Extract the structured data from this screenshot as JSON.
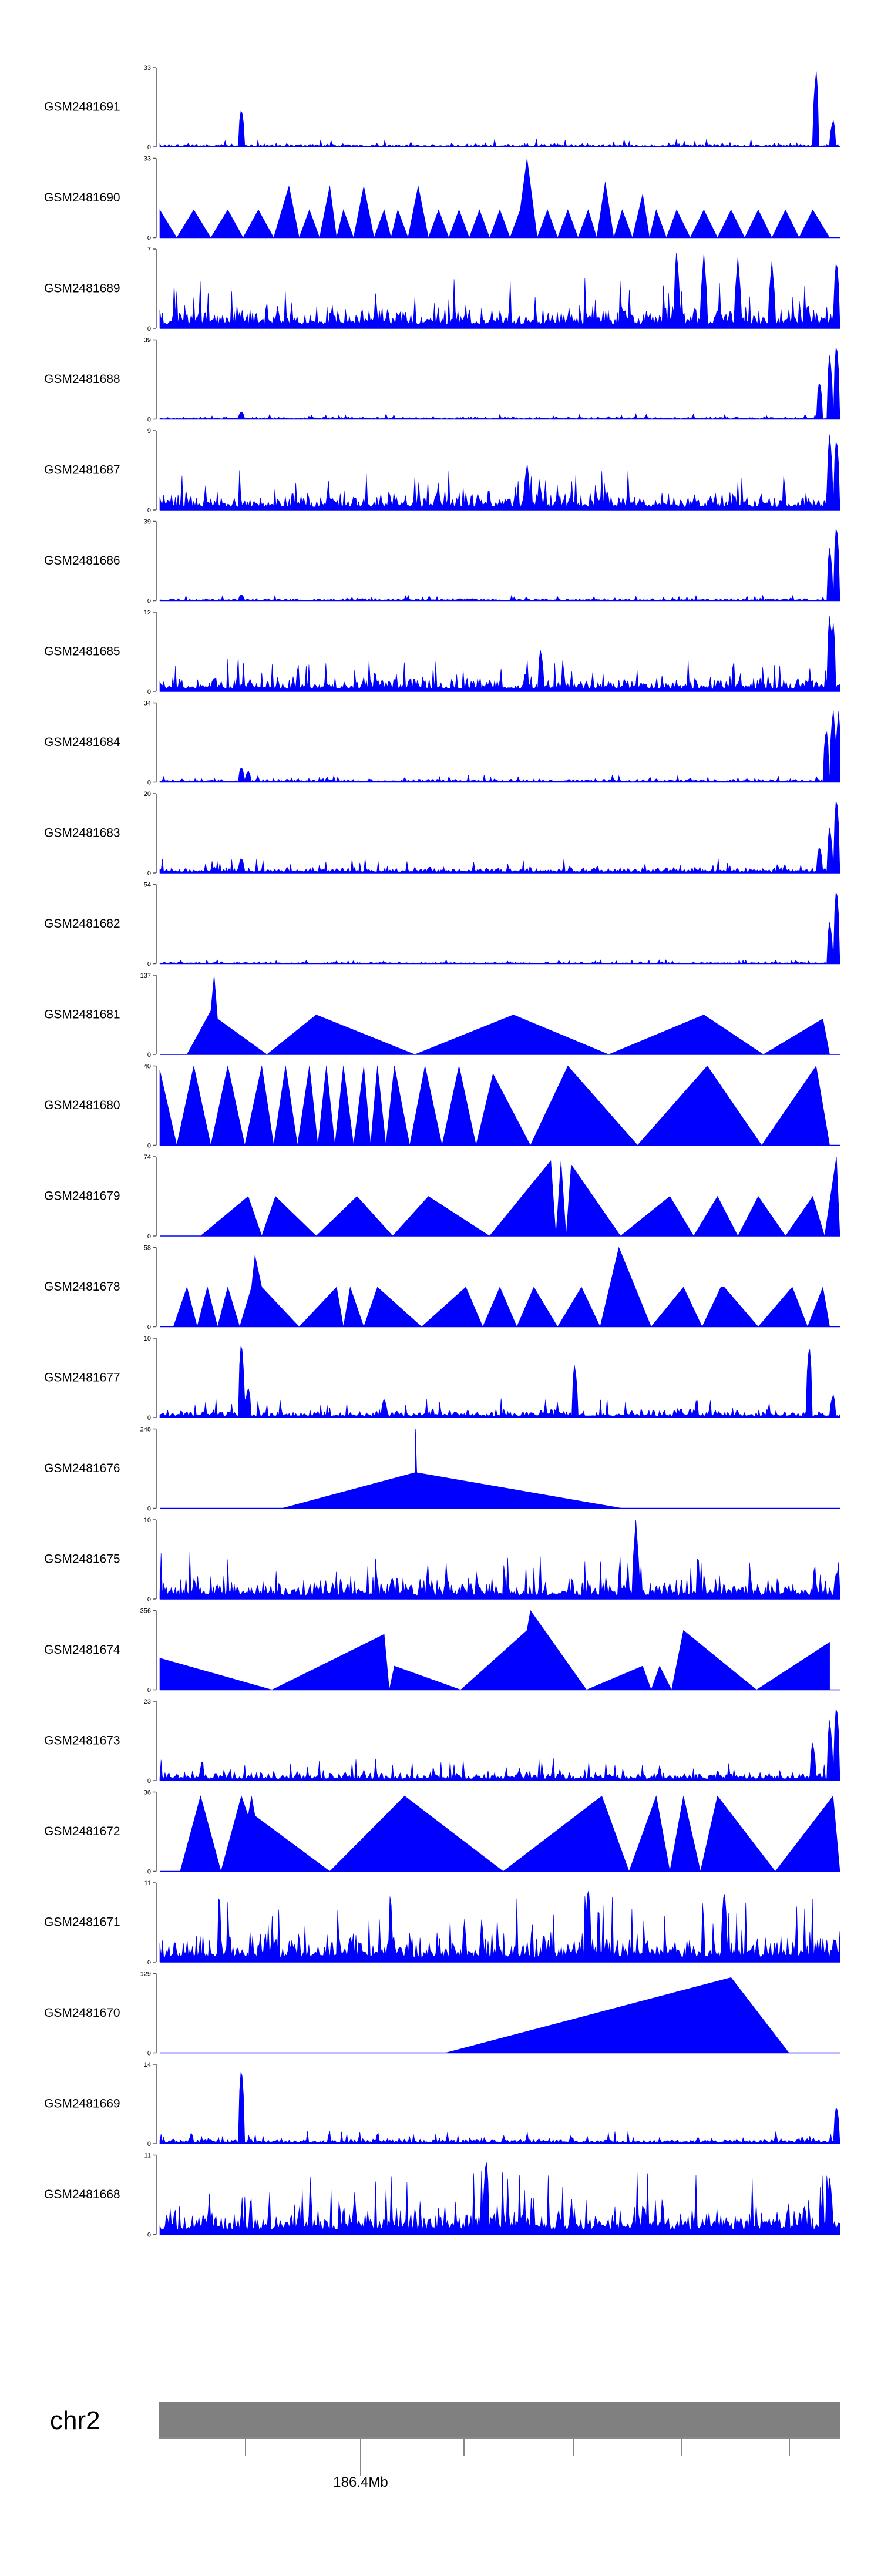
{
  "tracks": [
    {
      "name": "GSM2481691",
      "ymax": 33,
      "ymin": 0,
      "style": "noise",
      "seed": 11,
      "base": 0.05,
      "peaks": [
        [
          0.12,
          0.5
        ],
        [
          0.965,
          1.0
        ],
        [
          0.99,
          0.35
        ]
      ]
    },
    {
      "name": "GSM2481690",
      "ymax": 33,
      "ymin": 0,
      "style": "triangles",
      "seed": 12,
      "start": 0.0,
      "end": 0.985,
      "peaks": [
        [
          0.0,
          0.35
        ],
        [
          0.05,
          0.35
        ],
        [
          0.1,
          0.35
        ],
        [
          0.145,
          0.35
        ],
        [
          0.19,
          0.65
        ],
        [
          0.22,
          0.35
        ],
        [
          0.25,
          0.65
        ],
        [
          0.27,
          0.35
        ],
        [
          0.3,
          0.65
        ],
        [
          0.33,
          0.35
        ],
        [
          0.35,
          0.35
        ],
        [
          0.38,
          0.65
        ],
        [
          0.41,
          0.35
        ],
        [
          0.44,
          0.35
        ],
        [
          0.47,
          0.35
        ],
        [
          0.5,
          0.35
        ],
        [
          0.53,
          0.35
        ],
        [
          0.54,
          1.0
        ],
        [
          0.57,
          0.35
        ],
        [
          0.6,
          0.35
        ],
        [
          0.63,
          0.35
        ],
        [
          0.655,
          0.7
        ],
        [
          0.68,
          0.35
        ],
        [
          0.71,
          0.55
        ],
        [
          0.73,
          0.35
        ],
        [
          0.76,
          0.35
        ],
        [
          0.8,
          0.35
        ],
        [
          0.84,
          0.35
        ],
        [
          0.88,
          0.35
        ],
        [
          0.92,
          0.35
        ],
        [
          0.96,
          0.35
        ]
      ]
    },
    {
      "name": "GSM2481689",
      "ymax": 7,
      "ymin": 0,
      "style": "noise",
      "seed": 13,
      "base": 0.32,
      "peaks": [
        [
          0.76,
          1.0
        ],
        [
          0.8,
          0.95
        ],
        [
          0.85,
          0.9
        ],
        [
          0.9,
          0.85
        ],
        [
          0.995,
          0.9
        ]
      ]
    },
    {
      "name": "GSM2481688",
      "ymax": 39,
      "ymin": 0,
      "style": "noise",
      "seed": 14,
      "base": 0.035,
      "peaks": [
        [
          0.12,
          0.1
        ],
        [
          0.97,
          0.5
        ],
        [
          0.985,
          0.85
        ],
        [
          0.995,
          1.0
        ]
      ]
    },
    {
      "name": "GSM2481687",
      "ymax": 9,
      "ymin": 0,
      "style": "noise",
      "seed": 15,
      "base": 0.25,
      "peaks": [
        [
          0.54,
          0.6
        ],
        [
          0.985,
          1.0
        ],
        [
          0.995,
          0.95
        ]
      ]
    },
    {
      "name": "GSM2481686",
      "ymax": 39,
      "ymin": 0,
      "style": "noise",
      "seed": 16,
      "base": 0.035,
      "peaks": [
        [
          0.12,
          0.08
        ],
        [
          0.985,
          0.7
        ],
        [
          0.995,
          1.0
        ]
      ]
    },
    {
      "name": "GSM2481685",
      "ymax": 12,
      "ymin": 0,
      "style": "noise",
      "seed": 17,
      "base": 0.22,
      "peaks": [
        [
          0.56,
          0.55
        ],
        [
          0.985,
          1.0
        ],
        [
          0.99,
          0.9
        ]
      ]
    },
    {
      "name": "GSM2481684",
      "ymax": 34,
      "ymin": 0,
      "style": "noise",
      "seed": 18,
      "base": 0.05,
      "peaks": [
        [
          0.12,
          0.2
        ],
        [
          0.13,
          0.15
        ],
        [
          0.98,
          0.7
        ],
        [
          0.99,
          0.95
        ],
        [
          0.998,
          0.9
        ]
      ]
    },
    {
      "name": "GSM2481683",
      "ymax": 20,
      "ymin": 0,
      "style": "noise",
      "seed": 19,
      "base": 0.09,
      "peaks": [
        [
          0.12,
          0.2
        ],
        [
          0.97,
          0.35
        ],
        [
          0.985,
          0.6
        ],
        [
          0.995,
          1.0
        ]
      ]
    },
    {
      "name": "GSM2481682",
      "ymax": 54,
      "ymin": 0,
      "style": "noise",
      "seed": 20,
      "base": 0.025,
      "peaks": [
        [
          0.985,
          0.55
        ],
        [
          0.995,
          1.0
        ]
      ]
    },
    {
      "name": "GSM2481681",
      "ymax": 137,
      "ymin": 0,
      "style": "triangles",
      "seed": 21,
      "start": 0.04,
      "end": 0.985,
      "peaks": [
        [
          0.075,
          0.55
        ],
        [
          0.08,
          1.0
        ],
        [
          0.085,
          0.45
        ],
        [
          0.23,
          0.5
        ],
        [
          0.52,
          0.5
        ],
        [
          0.8,
          0.5
        ],
        [
          0.975,
          0.45
        ]
      ]
    },
    {
      "name": "GSM2481680",
      "ymax": 40,
      "ymin": 0,
      "style": "triangles",
      "seed": 22,
      "start": 0.0,
      "end": 0.985,
      "peaks": [
        [
          0.0,
          0.95
        ],
        [
          0.05,
          1.0
        ],
        [
          0.1,
          1.0
        ],
        [
          0.15,
          1.0
        ],
        [
          0.185,
          1.0
        ],
        [
          0.22,
          1.0
        ],
        [
          0.245,
          1.0
        ],
        [
          0.27,
          1.0
        ],
        [
          0.3,
          1.0
        ],
        [
          0.32,
          1.0
        ],
        [
          0.345,
          1.0
        ],
        [
          0.39,
          1.0
        ],
        [
          0.44,
          1.0
        ],
        [
          0.49,
          0.9
        ],
        [
          0.6,
          1.0
        ],
        [
          0.805,
          1.0
        ],
        [
          0.965,
          1.0
        ]
      ]
    },
    {
      "name": "GSM2481679",
      "ymax": 74,
      "ymin": 0,
      "style": "triangles",
      "seed": 23,
      "start": 0.06,
      "end": 1.0,
      "peaks": [
        [
          0.13,
          0.5
        ],
        [
          0.17,
          0.5
        ],
        [
          0.29,
          0.5
        ],
        [
          0.395,
          0.5
        ],
        [
          0.575,
          0.95
        ],
        [
          0.59,
          0.95
        ],
        [
          0.605,
          0.9
        ],
        [
          0.75,
          0.5
        ],
        [
          0.82,
          0.5
        ],
        [
          0.88,
          0.5
        ],
        [
          0.96,
          0.5
        ],
        [
          0.995,
          1.0
        ]
      ]
    },
    {
      "name": "GSM2481678",
      "ymax": 58,
      "ymin": 0,
      "style": "triangles",
      "seed": 24,
      "start": 0.02,
      "end": 0.985,
      "peaks": [
        [
          0.04,
          0.5
        ],
        [
          0.07,
          0.5
        ],
        [
          0.1,
          0.5
        ],
        [
          0.135,
          0.5
        ],
        [
          0.14,
          0.9
        ],
        [
          0.15,
          0.5
        ],
        [
          0.26,
          0.5
        ],
        [
          0.28,
          0.5
        ],
        [
          0.32,
          0.5
        ],
        [
          0.45,
          0.5
        ],
        [
          0.5,
          0.5
        ],
        [
          0.55,
          0.5
        ],
        [
          0.62,
          0.5
        ],
        [
          0.675,
          1.0
        ],
        [
          0.77,
          0.5
        ],
        [
          0.825,
          0.5
        ],
        [
          0.83,
          0.5
        ],
        [
          0.93,
          0.5
        ],
        [
          0.975,
          0.5
        ]
      ]
    },
    {
      "name": "GSM2481677",
      "ymax": 10,
      "ymin": 0,
      "style": "noise",
      "seed": 25,
      "base": 0.12,
      "peaks": [
        [
          0.12,
          1.0
        ],
        [
          0.13,
          0.4
        ],
        [
          0.33,
          0.25
        ],
        [
          0.61,
          0.7
        ],
        [
          0.955,
          0.95
        ],
        [
          0.99,
          0.3
        ]
      ]
    },
    {
      "name": "GSM2481676",
      "ymax": 248,
      "ymin": 0,
      "style": "triangles",
      "seed": 26,
      "start": 0.18,
      "end": 0.68,
      "peaks": [
        [
          0.375,
          0.45
        ],
        [
          0.376,
          1.0
        ],
        [
          0.378,
          0.45
        ]
      ]
    },
    {
      "name": "GSM2481675",
      "ymax": 10,
      "ymin": 0,
      "style": "noise",
      "seed": 27,
      "base": 0.32,
      "peaks": [
        [
          0.7,
          1.0
        ],
        [
          0.995,
          0.35
        ]
      ]
    },
    {
      "name": "GSM2481674",
      "ymax": 356,
      "ymin": 0,
      "style": "triangles",
      "seed": 28,
      "start": 0.0,
      "end": 0.985,
      "peaks": [
        [
          0.0,
          0.4
        ],
        [
          0.33,
          0.7
        ],
        [
          0.345,
          0.3
        ],
        [
          0.54,
          0.75
        ],
        [
          0.545,
          1.0
        ],
        [
          0.71,
          0.3
        ],
        [
          0.735,
          0.3
        ],
        [
          0.77,
          0.75
        ],
        [
          0.985,
          0.6
        ]
      ]
    },
    {
      "name": "GSM2481673",
      "ymax": 23,
      "ymin": 0,
      "style": "noise",
      "seed": 29,
      "base": 0.14,
      "peaks": [
        [
          0.96,
          0.5
        ],
        [
          0.985,
          0.8
        ],
        [
          0.995,
          1.0
        ]
      ]
    },
    {
      "name": "GSM2481672",
      "ymax": 36,
      "ymin": 0,
      "style": "triangles",
      "seed": 30,
      "start": 0.03,
      "end": 1.0,
      "peaks": [
        [
          0.06,
          0.95
        ],
        [
          0.12,
          0.95
        ],
        [
          0.13,
          0.7
        ],
        [
          0.135,
          0.95
        ],
        [
          0.14,
          0.7
        ],
        [
          0.36,
          0.95
        ],
        [
          0.65,
          0.95
        ],
        [
          0.73,
          0.95
        ],
        [
          0.77,
          0.95
        ],
        [
          0.82,
          0.95
        ],
        [
          0.99,
          0.95
        ]
      ]
    },
    {
      "name": "GSM2481671",
      "ymax": 11,
      "ymin": 0,
      "style": "noise",
      "seed": 31,
      "base": 0.42,
      "peaks": [
        [
          0.63,
          1.0
        ],
        [
          0.83,
          0.95
        ]
      ]
    },
    {
      "name": "GSM2481670",
      "ymax": 129,
      "ymin": 0,
      "style": "triangles",
      "seed": 32,
      "start": 0.42,
      "end": 0.925,
      "peaks": [
        [
          0.84,
          0.95
        ]
      ]
    },
    {
      "name": "GSM2481669",
      "ymax": 14,
      "ymin": 0,
      "style": "noise",
      "seed": 33,
      "base": 0.08,
      "peaks": [
        [
          0.12,
          1.0
        ],
        [
          0.995,
          0.5
        ]
      ]
    },
    {
      "name": "GSM2481668",
      "ymax": 11,
      "ymin": 0,
      "style": "noise",
      "seed": 34,
      "base": 0.4,
      "peaks": [
        [
          0.48,
          1.0
        ],
        [
          0.985,
          0.75
        ]
      ]
    }
  ],
  "chromosome": {
    "label": "chr2",
    "tick_label": "186.4Mb",
    "color": "#808080"
  },
  "chart_data": {
    "type": "area",
    "title": "",
    "xlabel": "chr2",
    "x_tick_labels": [
      "186.4Mb"
    ],
    "series_color": "#0000ff",
    "series": [
      {
        "name": "GSM2481691",
        "ylim": [
          0,
          33
        ]
      },
      {
        "name": "GSM2481690",
        "ylim": [
          0,
          33
        ]
      },
      {
        "name": "GSM2481689",
        "ylim": [
          0,
          7
        ]
      },
      {
        "name": "GSM2481688",
        "ylim": [
          0,
          39
        ]
      },
      {
        "name": "GSM2481687",
        "ylim": [
          0,
          9
        ]
      },
      {
        "name": "GSM2481686",
        "ylim": [
          0,
          39
        ]
      },
      {
        "name": "GSM2481685",
        "ylim": [
          0,
          12
        ]
      },
      {
        "name": "GSM2481684",
        "ylim": [
          0,
          34
        ]
      },
      {
        "name": "GSM2481683",
        "ylim": [
          0,
          20
        ]
      },
      {
        "name": "GSM2481682",
        "ylim": [
          0,
          54
        ]
      },
      {
        "name": "GSM2481681",
        "ylim": [
          0,
          137
        ]
      },
      {
        "name": "GSM2481680",
        "ylim": [
          0,
          40
        ]
      },
      {
        "name": "GSM2481679",
        "ylim": [
          0,
          74
        ]
      },
      {
        "name": "GSM2481678",
        "ylim": [
          0,
          58
        ]
      },
      {
        "name": "GSM2481677",
        "ylim": [
          0,
          10
        ]
      },
      {
        "name": "GSM2481676",
        "ylim": [
          0,
          248
        ]
      },
      {
        "name": "GSM2481675",
        "ylim": [
          0,
          10
        ]
      },
      {
        "name": "GSM2481674",
        "ylim": [
          0,
          356
        ]
      },
      {
        "name": "GSM2481673",
        "ylim": [
          0,
          23
        ]
      },
      {
        "name": "GSM2481672",
        "ylim": [
          0,
          36
        ]
      },
      {
        "name": "GSM2481671",
        "ylim": [
          0,
          11
        ]
      },
      {
        "name": "GSM2481670",
        "ylim": [
          0,
          129
        ]
      },
      {
        "name": "GSM2481669",
        "ylim": [
          0,
          14
        ]
      },
      {
        "name": "GSM2481668",
        "ylim": [
          0,
          11
        ]
      }
    ]
  }
}
